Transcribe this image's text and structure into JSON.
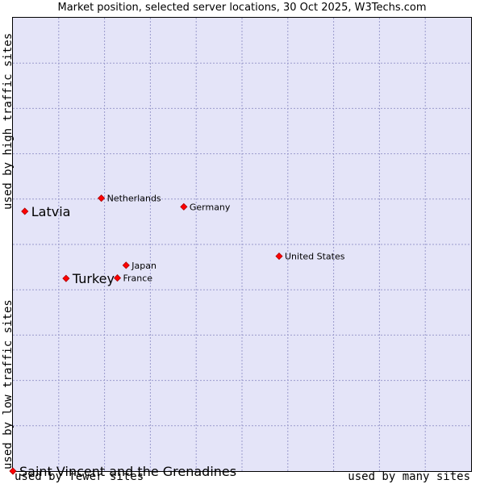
{
  "chart_data": {
    "type": "scatter",
    "title": "Market position, selected server locations, 30 Oct 2025, W3Techs.com",
    "xlabel_left": "used by fewer sites",
    "xlabel_right": "used by many sites",
    "ylabel_bottom": "used by low traffic sites",
    "ylabel_top": "used by high traffic sites",
    "xlim": [
      0,
      100
    ],
    "ylim": [
      0,
      100
    ],
    "grid": true,
    "points": [
      {
        "name": "Latvia",
        "x": 2.6,
        "y": 57.3,
        "highlight": true
      },
      {
        "name": "Netherlands",
        "x": 19.3,
        "y": 60.2,
        "highlight": false
      },
      {
        "name": "Germany",
        "x": 37.3,
        "y": 58.3,
        "highlight": false
      },
      {
        "name": "United States",
        "x": 58.1,
        "y": 47.4,
        "highlight": false
      },
      {
        "name": "Japan",
        "x": 24.7,
        "y": 45.4,
        "highlight": false
      },
      {
        "name": "Turkey",
        "x": 11.6,
        "y": 42.5,
        "highlight": true
      },
      {
        "name": "France",
        "x": 22.8,
        "y": 42.6,
        "highlight": false
      },
      {
        "name": "Saint Vincent and the Grenadines",
        "x": 0.0,
        "y": 0.0,
        "highlight": true
      }
    ]
  }
}
